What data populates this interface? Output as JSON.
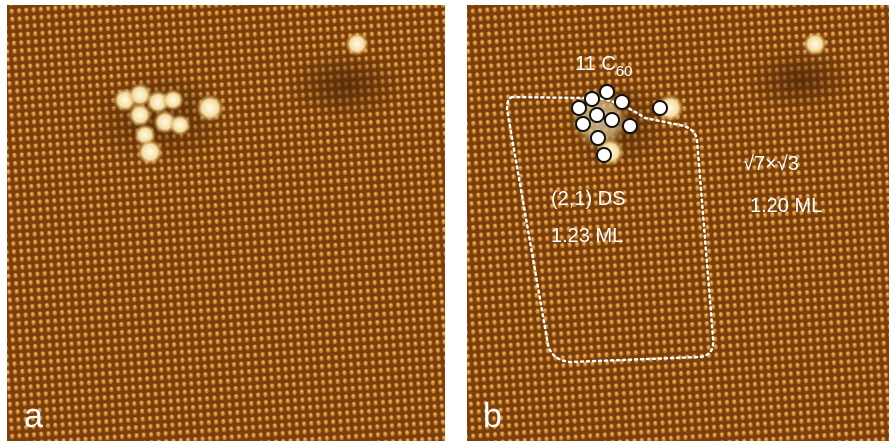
{
  "panels": [
    {
      "label": "a"
    },
    {
      "label": "b",
      "annotations": {
        "cluster": {
          "text": "11 C",
          "subscript": "60"
        },
        "domain_left": {
          "line1": "(2,1) DS",
          "line2": "1.23 ML"
        },
        "domain_right": {
          "line1": "√7×√3",
          "line2": "1.20 ML"
        }
      }
    }
  ]
}
